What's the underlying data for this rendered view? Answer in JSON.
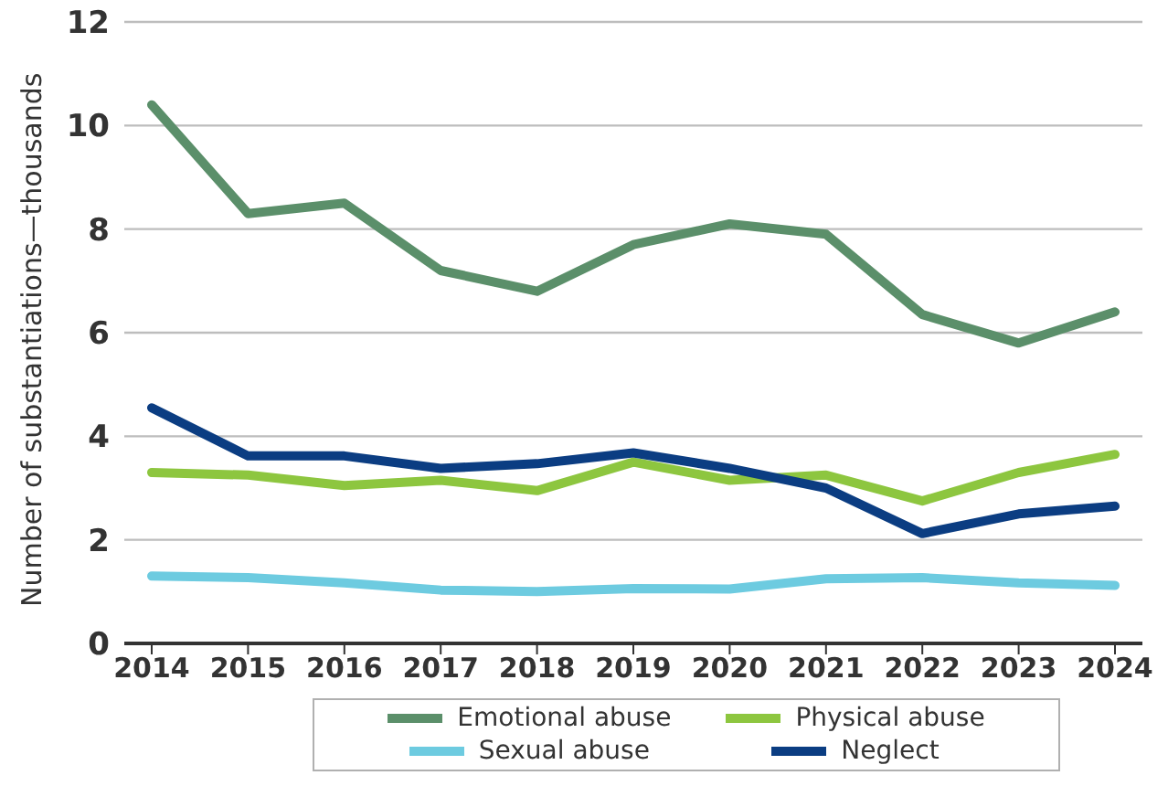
{
  "chart_data": {
    "type": "line",
    "ylabel": "Number of substantiations—thousands",
    "categories": [
      "2014",
      "2015",
      "2016",
      "2017",
      "2018",
      "2019",
      "2020",
      "2021",
      "2022",
      "2023",
      "2024"
    ],
    "series": [
      {
        "name": "Emotional abuse",
        "color": "#5b8f6a",
        "values": [
          10.4,
          8.3,
          8.5,
          7.2,
          6.8,
          7.7,
          8.1,
          7.9,
          6.35,
          5.8,
          6.4
        ]
      },
      {
        "name": "Physical abuse",
        "color": "#8dc63f",
        "values": [
          3.3,
          3.25,
          3.05,
          3.15,
          2.95,
          3.5,
          3.15,
          3.25,
          2.75,
          3.3,
          3.65
        ]
      },
      {
        "name": "Sexual abuse",
        "color": "#6dcbe0",
        "values": [
          1.3,
          1.27,
          1.17,
          1.03,
          1.0,
          1.06,
          1.05,
          1.25,
          1.27,
          1.17,
          1.12
        ]
      },
      {
        "name": "Neglect",
        "color": "#0b3d82",
        "values": [
          4.55,
          3.62,
          3.62,
          3.38,
          3.47,
          3.68,
          3.38,
          3.0,
          2.12,
          2.5,
          2.65
        ]
      }
    ],
    "ylim": [
      0,
      12
    ],
    "yticks": [
      0,
      2,
      4,
      6,
      8,
      10,
      12
    ],
    "grid": "y",
    "legend": "bottom",
    "marker": "none",
    "line_style": "solid"
  }
}
